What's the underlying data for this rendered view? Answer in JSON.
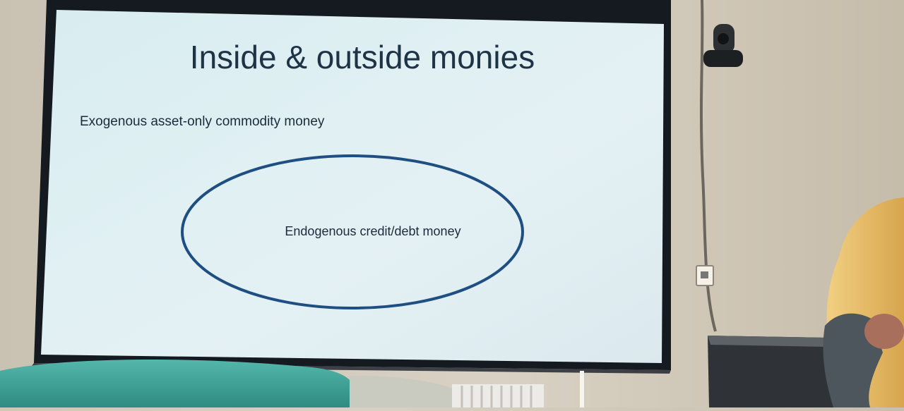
{
  "slide": {
    "title": "Inside & outside monies",
    "outer_label": "Exogenous asset-only commodity money",
    "inner_label": "Endogenous credit/debt money"
  },
  "colors": {
    "slide_bg": "#dfeef2",
    "screen_border": "#161c22",
    "ellipse_stroke": "#1f4f82",
    "wall": "#d8d1c3",
    "sofa": "#3fa59a",
    "jacket": "#e2b45a"
  }
}
